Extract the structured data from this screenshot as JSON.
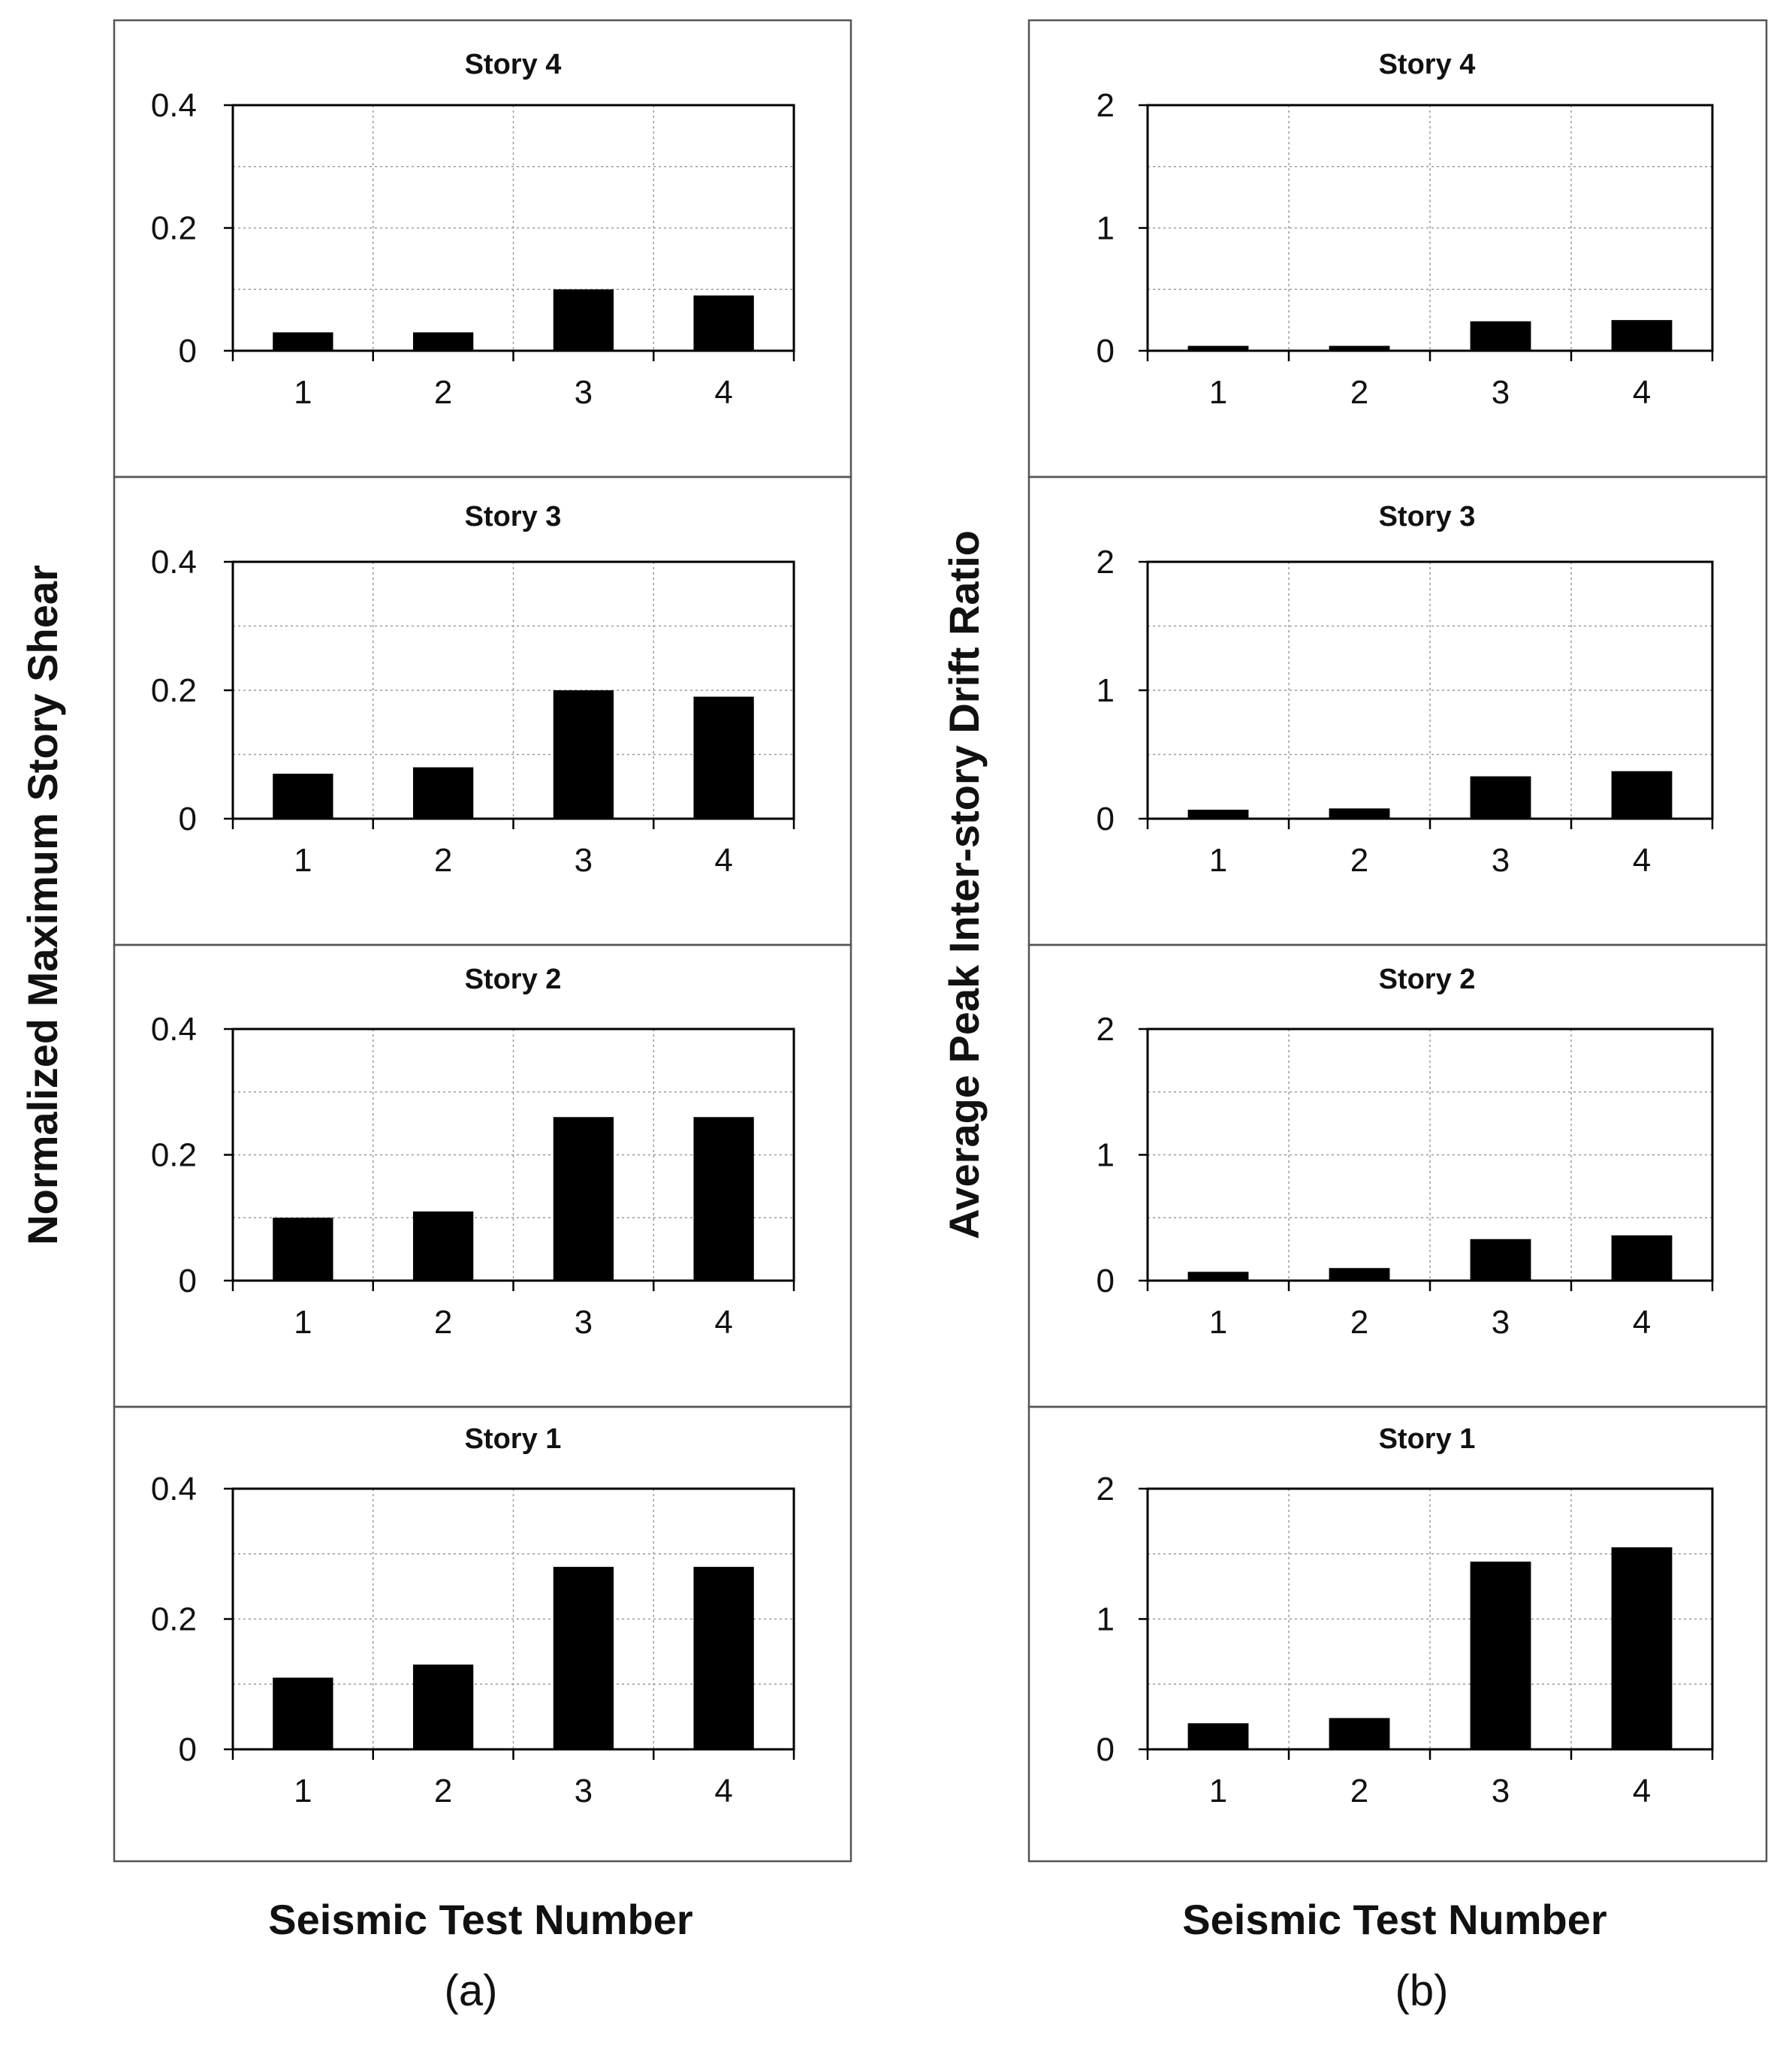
{
  "figure": {
    "columns": [
      {
        "id": "a",
        "ylabel": "Normalized Maximum Story Shear",
        "xlabel": "Seismic Test Number",
        "sublabel": "(a)",
        "ylim": [
          0,
          0.4
        ],
        "yticks": [
          "0",
          "0.2",
          "0.4"
        ]
      },
      {
        "id": "b",
        "ylabel": "Average Peak Inter-story Drift Ratio",
        "xlabel": "Seismic Test Number",
        "sublabel": "(b)",
        "ylim": [
          0,
          2
        ],
        "yticks": [
          "0",
          "1",
          "2"
        ]
      }
    ]
  },
  "chart_data": [
    {
      "type": "bar",
      "column": "a",
      "title": "Story 4",
      "categories": [
        "1",
        "2",
        "3",
        "4"
      ],
      "values": [
        0.03,
        0.03,
        0.1,
        0.09
      ],
      "ylim": [
        0,
        0.4
      ],
      "yticks": [
        "0",
        "0.2",
        "0.4"
      ],
      "xlabel": "Seismic Test Number",
      "ylabel": "Normalized Maximum Story Shear",
      "grid": true
    },
    {
      "type": "bar",
      "column": "a",
      "title": "Story 3",
      "categories": [
        "1",
        "2",
        "3",
        "4"
      ],
      "values": [
        0.07,
        0.08,
        0.2,
        0.19
      ],
      "ylim": [
        0,
        0.4
      ],
      "yticks": [
        "0",
        "0.2",
        "0.4"
      ],
      "xlabel": "Seismic Test Number",
      "ylabel": "Normalized Maximum Story Shear",
      "grid": true
    },
    {
      "type": "bar",
      "column": "a",
      "title": "Story 2",
      "categories": [
        "1",
        "2",
        "3",
        "4"
      ],
      "values": [
        0.1,
        0.11,
        0.26,
        0.26
      ],
      "ylim": [
        0,
        0.4
      ],
      "yticks": [
        "0",
        "0.2",
        "0.4"
      ],
      "xlabel": "Seismic Test Number",
      "ylabel": "Normalized Maximum Story Shear",
      "grid": true
    },
    {
      "type": "bar",
      "column": "a",
      "title": "Story 1",
      "categories": [
        "1",
        "2",
        "3",
        "4"
      ],
      "values": [
        0.11,
        0.13,
        0.28,
        0.28
      ],
      "ylim": [
        0,
        0.4
      ],
      "yticks": [
        "0",
        "0.2",
        "0.4"
      ],
      "xlabel": "Seismic Test Number",
      "ylabel": "Normalized Maximum Story Shear",
      "grid": true
    },
    {
      "type": "bar",
      "column": "b",
      "title": "Story 4",
      "categories": [
        "1",
        "2",
        "3",
        "4"
      ],
      "values": [
        0.04,
        0.04,
        0.24,
        0.25
      ],
      "ylim": [
        0,
        2
      ],
      "yticks": [
        "0",
        "1",
        "2"
      ],
      "xlabel": "Seismic Test Number",
      "ylabel": "Average Peak Inter-story Drift Ratio",
      "grid": true
    },
    {
      "type": "bar",
      "column": "b",
      "title": "Story 3",
      "categories": [
        "1",
        "2",
        "3",
        "4"
      ],
      "values": [
        0.07,
        0.08,
        0.33,
        0.37
      ],
      "ylim": [
        0,
        2
      ],
      "yticks": [
        "0",
        "1",
        "2"
      ],
      "xlabel": "Seismic Test Number",
      "ylabel": "Average Peak Inter-story Drift Ratio",
      "grid": true
    },
    {
      "type": "bar",
      "column": "b",
      "title": "Story 2",
      "categories": [
        "1",
        "2",
        "3",
        "4"
      ],
      "values": [
        0.07,
        0.1,
        0.33,
        0.36
      ],
      "ylim": [
        0,
        2
      ],
      "yticks": [
        "0",
        "1",
        "2"
      ],
      "xlabel": "Seismic Test Number",
      "ylabel": "Average Peak Inter-story Drift Ratio",
      "grid": true
    },
    {
      "type": "bar",
      "column": "b",
      "title": "Story 1",
      "categories": [
        "1",
        "2",
        "3",
        "4"
      ],
      "values": [
        0.2,
        0.24,
        1.44,
        1.55
      ],
      "ylim": [
        0,
        2
      ],
      "yticks": [
        "0",
        "1",
        "2"
      ],
      "xlabel": "Seismic Test Number",
      "ylabel": "Average Peak Inter-story Drift Ratio",
      "grid": true
    }
  ]
}
